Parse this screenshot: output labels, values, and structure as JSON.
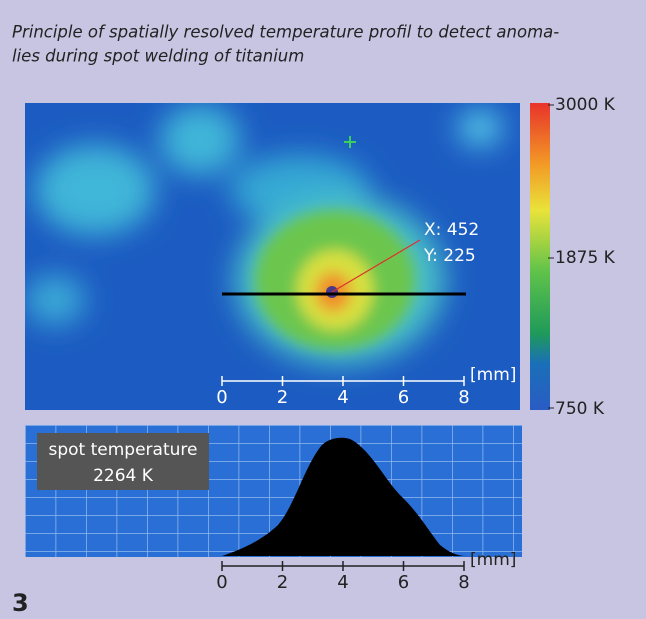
{
  "caption": [
    "Principle of spatially resolved temperature profil to detect anoma-",
    "lies during spot welding of titanium"
  ],
  "thermal_image": {
    "colorbar_labels": [
      "3000 K",
      "1875 K",
      "750 K"
    ],
    "cursor": [
      "X: 452",
      "Y: 225"
    ],
    "scale": {
      "ticks": [
        "0",
        "2",
        "4",
        "6",
        "8"
      ],
      "unit": "[mm]"
    }
  },
  "profile": {
    "label": "spot temperature",
    "value": "2264 K",
    "scale": {
      "ticks": [
        "0",
        "2",
        "4",
        "6",
        "8"
      ],
      "unit": "[mm]"
    }
  },
  "figure_number": "3"
}
